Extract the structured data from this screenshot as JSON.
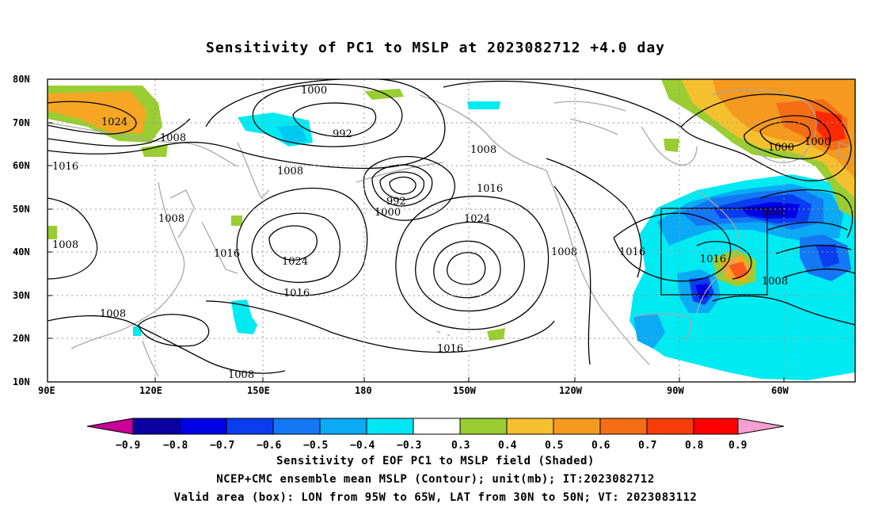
{
  "title": "Sensitivity of PC1 to MSLP at 2023082712 +4.0 day",
  "map": {
    "lat_labels": [
      "80N",
      "70N",
      "60N",
      "50N",
      "40N",
      "30N",
      "20N",
      "10N"
    ],
    "lon_labels": [
      "90E",
      "120E",
      "150E",
      "180",
      "150W",
      "120W",
      "90W",
      "60W"
    ],
    "isobar_labels": [
      "1024",
      "1008",
      "1016",
      "1000",
      "992",
      "1008",
      "992",
      "1000",
      "1016",
      "1008",
      "1024",
      "1024",
      "1016",
      "1008",
      "1008",
      "1016",
      "1008",
      "1016",
      "1008",
      "1008",
      "1016",
      "1000",
      "1000",
      "1008",
      "1016"
    ],
    "colors": {
      "negative_strong": "#0018c8",
      "negative_mid": "#0a78f0",
      "negative_weak": "#00eaf2",
      "positive_weak": "#9acd32",
      "positive_mid": "#f5a623",
      "positive_strong": "#ff3b00",
      "coastline": "#a8a8a8",
      "contour": "#000000"
    },
    "valid_box": {
      "lon_west": "95W",
      "lon_east": "65W",
      "lat_south": "30N",
      "lat_north": "50N"
    }
  },
  "colorbar": {
    "labels": [
      "−0.9",
      "−0.8",
      "−0.7",
      "−0.6",
      "−0.5",
      "−0.4",
      "−0.3",
      "0.3",
      "0.4",
      "0.5",
      "0.6",
      "0.7",
      "0.8",
      "0.9"
    ],
    "colors": [
      "#c80096",
      "#0a00a0",
      "#0000e6",
      "#0a3cf0",
      "#1478f5",
      "#0aaaf5",
      "#00e6f5",
      "#ffffff",
      "#9acd32",
      "#f5c030",
      "#f59a1e",
      "#f56e14",
      "#f53c0a",
      "#ff0000",
      "#f5a0d0"
    ]
  },
  "captions": {
    "line1": "Sensitivity of EOF PC1 to MSLP field (Shaded)",
    "line2": "NCEP+CMC ensemble mean MSLP (Contour); unit(mb); IT:2023082712",
    "line3": "Valid area (box): LON from 95W to 65W, LAT from 30N to 50N; VT: 2023083112"
  }
}
